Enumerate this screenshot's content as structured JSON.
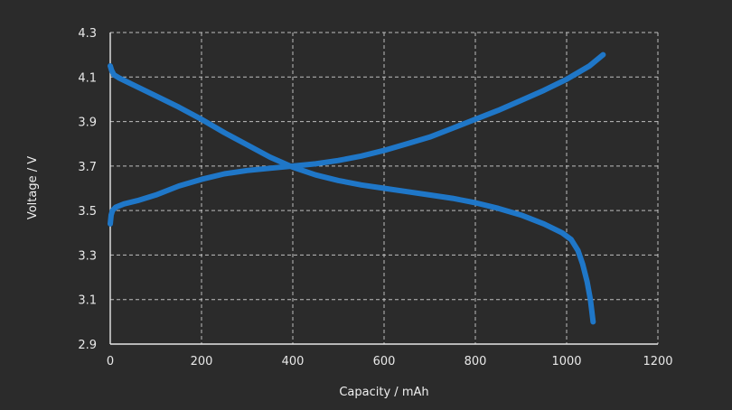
{
  "chart_data": {
    "type": "line",
    "title": "",
    "xlabel": "Capacity / mAh",
    "ylabel": "Voltage / V",
    "xlim": [
      0,
      1200
    ],
    "ylim": [
      2.9,
      4.3
    ],
    "x_ticks": [
      0,
      200,
      400,
      600,
      800,
      1000,
      1200
    ],
    "y_ticks": [
      2.9,
      3.1,
      3.3,
      3.5,
      3.7,
      3.9,
      4.1,
      4.3
    ],
    "x_tick_labels": [
      "0",
      "200",
      "400",
      "600",
      "800",
      "1000",
      "1200"
    ],
    "y_tick_labels": [
      "2.9",
      "3.1",
      "3.3",
      "3.5",
      "3.7",
      "3.9",
      "4.1",
      "4.3"
    ],
    "grid": true,
    "legend": "none",
    "color": "#1f77c8",
    "series": [
      {
        "points": [
          [
            0,
            3.44
          ],
          [
            2,
            3.48
          ],
          [
            5,
            3.5
          ],
          [
            12,
            3.515
          ],
          [
            30,
            3.53
          ],
          [
            60,
            3.545
          ],
          [
            100,
            3.57
          ],
          [
            150,
            3.61
          ],
          [
            200,
            3.64
          ],
          [
            250,
            3.665
          ],
          [
            300,
            3.68
          ],
          [
            350,
            3.69
          ],
          [
            400,
            3.7
          ],
          [
            450,
            3.71
          ],
          [
            500,
            3.725
          ],
          [
            550,
            3.745
          ],
          [
            600,
            3.77
          ],
          [
            650,
            3.8
          ],
          [
            700,
            3.83
          ],
          [
            750,
            3.87
          ],
          [
            800,
            3.91
          ],
          [
            850,
            3.95
          ],
          [
            900,
            3.995
          ],
          [
            950,
            4.04
          ],
          [
            1000,
            4.09
          ],
          [
            1050,
            4.15
          ],
          [
            1080,
            4.2
          ]
        ]
      },
      {
        "points": [
          [
            0,
            4.15
          ],
          [
            3,
            4.13
          ],
          [
            8,
            4.11
          ],
          [
            20,
            4.095
          ],
          [
            50,
            4.065
          ],
          [
            100,
            4.015
          ],
          [
            150,
            3.965
          ],
          [
            200,
            3.91
          ],
          [
            250,
            3.85
          ],
          [
            300,
            3.795
          ],
          [
            350,
            3.74
          ],
          [
            400,
            3.695
          ],
          [
            450,
            3.66
          ],
          [
            500,
            3.635
          ],
          [
            550,
            3.615
          ],
          [
            600,
            3.6
          ],
          [
            650,
            3.585
          ],
          [
            700,
            3.57
          ],
          [
            750,
            3.555
          ],
          [
            800,
            3.535
          ],
          [
            850,
            3.51
          ],
          [
            900,
            3.48
          ],
          [
            950,
            3.44
          ],
          [
            990,
            3.4
          ],
          [
            1010,
            3.37
          ],
          [
            1025,
            3.32
          ],
          [
            1035,
            3.26
          ],
          [
            1045,
            3.18
          ],
          [
            1052,
            3.1
          ],
          [
            1058,
            3.0
          ]
        ]
      }
    ]
  }
}
